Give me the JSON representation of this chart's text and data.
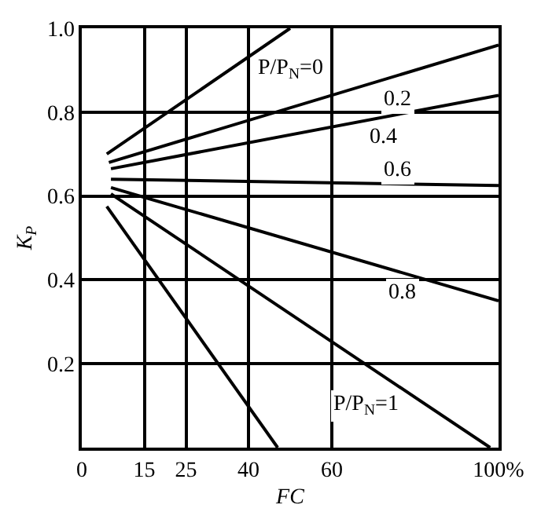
{
  "chart_data": {
    "type": "line",
    "xlabel": "FC",
    "ylabel": "K$_{P}$",
    "xlim": [
      0,
      100
    ],
    "xticks": [
      0,
      15,
      25,
      40,
      60,
      {
        "value": 100,
        "label": "100%"
      }
    ],
    "ylim": [
      0,
      1.0
    ],
    "yticks": [
      0.2,
      0.4,
      0.6,
      0.8,
      {
        "value": 1.0,
        "label": "1.0"
      }
    ],
    "grid": true,
    "marker": "none",
    "line_style": "solid",
    "series": [
      {
        "color": "#000000",
        "x": [
          6,
          50
        ],
        "values": [
          0.7,
          1.0
        ]
      },
      {
        "color": "#000000",
        "x": [
          6.5,
          100
        ],
        "values": [
          0.68,
          0.96
        ]
      },
      {
        "color": "#000000",
        "x": [
          7,
          100
        ],
        "values": [
          0.665,
          0.84
        ]
      },
      {
        "color": "#000000",
        "x": [
          7,
          100
        ],
        "values": [
          0.64,
          0.625
        ]
      },
      {
        "color": "#000000",
        "x": [
          7,
          100
        ],
        "values": [
          0.62,
          0.35
        ]
      },
      {
        "color": "#000000",
        "x": [
          7,
          98
        ],
        "values": [
          0.605,
          0
        ]
      },
      {
        "color": "#000000",
        "x": [
          6,
          47
        ],
        "values": [
          0.575,
          0
        ]
      }
    ],
    "annotations": [
      {
        "text": "P/P$_{N}$=0",
        "x": 50,
        "y": 0.9
      },
      {
        "text": "0.2",
        "x": 76,
        "y": 0.83
      },
      {
        "text": "0.4",
        "x": 72.5,
        "y": 0.74
      },
      {
        "text": "0.6",
        "x": 76,
        "y": 0.66
      },
      {
        "text": "0.8",
        "x": 77,
        "y": 0.37
      },
      {
        "text": "P/P$_{N}$=1",
        "x": 68,
        "y": 0.1
      }
    ]
  }
}
